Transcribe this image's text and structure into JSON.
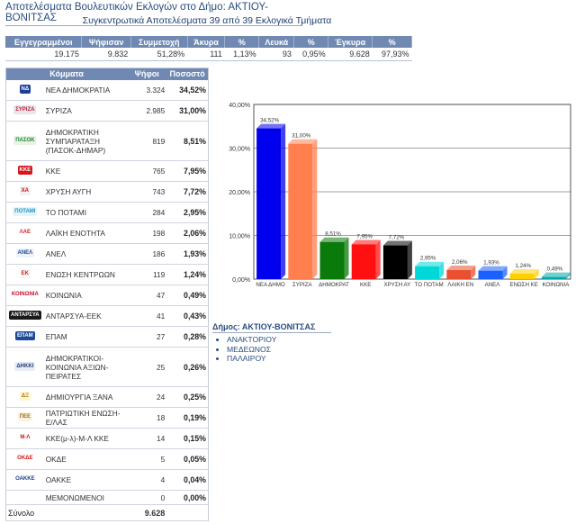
{
  "header": {
    "title": "Αποτελέσματα Βουλευτικών Εκλογών στο Δήμο: ΑΚΤΙΟΥ-ΒΟΝΙΤΣΑΣ",
    "subtitle": "Συγκεντρωτικά Αποτελέσματα 39 από 39 Εκλογικά Τμήματα"
  },
  "summary": {
    "headers": [
      "Εγγεγραμμένοι",
      "Ψήφισαν",
      "Συμμετοχή",
      "Άκυρα",
      "%",
      "Λευκά",
      "%",
      "Έγκυρα",
      "%"
    ],
    "values": [
      "19.175",
      "9.832",
      "51,28%",
      "111",
      "1,13%",
      "93",
      "0,95%",
      "9.628",
      "97,93%"
    ]
  },
  "results": {
    "headers": [
      "Κόμματα",
      "Ψήφοι",
      "Ποσοστό"
    ],
    "rows": [
      {
        "logo": "ΝΔ",
        "logo_color": "#1d3f9a",
        "logo_fg": "#ffffff",
        "name": "ΝΕΑ ΔΗΜΟΚΡΑΤΙΑ",
        "votes": "3.324",
        "pct": "34,52%"
      },
      {
        "logo": "ΣΥΡΙΖΑ",
        "logo_color": "#e8e8e8",
        "logo_fg": "#c81a3a",
        "name": "ΣΥΡΙΖΑ",
        "votes": "2.985",
        "pct": "31,00%"
      },
      {
        "logo": "ΠΑΣΟΚ",
        "logo_color": "#e8f3e6",
        "logo_fg": "#1c8a2e",
        "name": "ΔΗΜΟΚΡΑΤΙΚΗ ΣΥΜΠΑΡΑΤΑΞΗ (ΠΑΣΟΚ-ΔΗΜΑΡ)",
        "votes": "819",
        "pct": "8,51%"
      },
      {
        "logo": "ΚΚΕ",
        "logo_color": "#d7151b",
        "logo_fg": "#ffffff",
        "name": "ΚΚΕ",
        "votes": "765",
        "pct": "7,95%"
      },
      {
        "logo": "ΧΑ",
        "logo_color": "#f2f2f2",
        "logo_fg": "#c01010",
        "name": "ΧΡΥΣΗ ΑΥΓΗ",
        "votes": "743",
        "pct": "7,72%"
      },
      {
        "logo": "ΠΟΤΑΜΙ",
        "logo_color": "#e6f4fa",
        "logo_fg": "#1593c8",
        "name": "ΤΟ ΠΟΤΑΜΙ",
        "votes": "284",
        "pct": "2,95%"
      },
      {
        "logo": "ΛΑΕ",
        "logo_color": "#ffffff",
        "logo_fg": "#d4202a",
        "name": "ΛΑΪΚΗ ΕΝΟΤΗΤΑ",
        "votes": "198",
        "pct": "2,06%"
      },
      {
        "logo": "ΑΝΕΛ",
        "logo_color": "#eef2fa",
        "logo_fg": "#1e4a8e",
        "name": "ΑΝΕΛ",
        "votes": "186",
        "pct": "1,93%"
      },
      {
        "logo": "ΕΚ",
        "logo_color": "#f6f6f6",
        "logo_fg": "#c62a2a",
        "name": "ΕΝΩΣΗ ΚΕΝΤΡΩΩΝ",
        "votes": "119",
        "pct": "1,24%"
      },
      {
        "logo": "ΚΟΙΝΩΝΙΑ",
        "logo_color": "#ffffff",
        "logo_fg": "#c8102e",
        "name": "ΚΟΙΝΩΝΙΑ",
        "votes": "47",
        "pct": "0,49%"
      },
      {
        "logo": "ΑΝΤΑΡΣΥΑ",
        "logo_color": "#1a1a1a",
        "logo_fg": "#ffffff",
        "name": "ΑΝΤΑΡΣΥΑ-ΕΕΚ",
        "votes": "41",
        "pct": "0,43%"
      },
      {
        "logo": "ΕΠΑΜ",
        "logo_color": "#1e4a9a",
        "logo_fg": "#ffffff",
        "name": "ΕΠΑΜ",
        "votes": "27",
        "pct": "0,28%"
      },
      {
        "logo": "ΔΗΚΚΙ",
        "logo_color": "#e8edf6",
        "logo_fg": "#223a7a",
        "name": "ΔΗΜΟΚΡΑΤΙΚΟΙ-ΚΟΙΝΩΝΙΑ ΑΞΙΩΝ-ΠΕΙΡΑΤΕΣ",
        "votes": "25",
        "pct": "0,26%"
      },
      {
        "logo": "ΔΞ",
        "logo_color": "#fff6d8",
        "logo_fg": "#b07b00",
        "name": "ΔΗΜΙΟΥΡΓΙΑ ΞΑΝΑ",
        "votes": "24",
        "pct": "0,25%"
      },
      {
        "logo": "ΠΕΕ",
        "logo_color": "#fbf3e3",
        "logo_fg": "#a0701a",
        "name": "ΠΑΤΡΙΩΤΙΚΗ ΕΝΩΣΗ-Ε/ΛΑΣ",
        "votes": "18",
        "pct": "0,19%"
      },
      {
        "logo": "Μ-Λ",
        "logo_color": "#ffffff",
        "logo_fg": "#d01818",
        "name": "ΚΚΕ(μ-λ)-Μ-Λ ΚΚΕ",
        "votes": "14",
        "pct": "0,15%"
      },
      {
        "logo": "ΟΚΔΕ",
        "logo_color": "#ffffff",
        "logo_fg": "#d01818",
        "name": "ΟΚΔΕ",
        "votes": "5",
        "pct": "0,05%"
      },
      {
        "logo": "ΟΑΚΚΕ",
        "logo_color": "#ffffff",
        "logo_fg": "#1e3f8a",
        "name": "ΟΑΚΚΕ",
        "votes": "4",
        "pct": "0,04%"
      },
      {
        "logo": "",
        "logo_color": "#ffffff",
        "logo_fg": "#ffffff",
        "name": "ΜΕΜΟΝΩΜΕΝΟΙ",
        "votes": "0",
        "pct": "0,00%"
      }
    ],
    "total_label": "Σύνολο",
    "total_votes": "9.628"
  },
  "chart_data": {
    "type": "bar",
    "categories": [
      "ΝΕΑ ΔΗΜΟ",
      "ΣΥΡΙΖΑ",
      "ΔΗΜΟΚΡΑΤ",
      "ΚΚΕ",
      "ΧΡΥΣΗ ΑΥ",
      "ΤΟ ΠΟΤΑΜ",
      "ΛΑΙΚΗ ΕΝ",
      "ΑΝΕΛ",
      "ΕΝΩΣΗ ΚΕ",
      "ΚΟΙΝΩΝΙΑ"
    ],
    "values": [
      34.52,
      31.0,
      8.51,
      7.95,
      7.72,
      2.95,
      2.06,
      1.93,
      1.24,
      0.49
    ],
    "value_labels": [
      "34,52%",
      "31,00%",
      "8,51%",
      "7,95%",
      "7,72%",
      "2,95%",
      "2,06%",
      "1,93%",
      "1,24%",
      "0,49%"
    ],
    "colors": [
      "#0000ee",
      "#ff7f4f",
      "#0a7a0a",
      "#ff1010",
      "#000000",
      "#00d8d8",
      "#e85030",
      "#1a60ff",
      "#ffd000",
      "#00a8a8"
    ],
    "ylim": [
      0,
      40
    ],
    "yticks": [
      0,
      10,
      20,
      30,
      40
    ],
    "ytick_labels": [
      "0,00%",
      "10,00%",
      "20,00%",
      "30,00%",
      "40,00%"
    ],
    "grid": true,
    "title": "",
    "xlabel": "",
    "ylabel": ""
  },
  "municipality": {
    "title": "Δήμος: ΑΚΤΙΟΥ-ΒΟΝΙΤΣΑΣ",
    "units": [
      "ΑΝΑΚΤΟΡΙΟΥ",
      "ΜΕΔΕΩΝΟΣ",
      "ΠΑΛΑΙΡΟΥ"
    ]
  }
}
